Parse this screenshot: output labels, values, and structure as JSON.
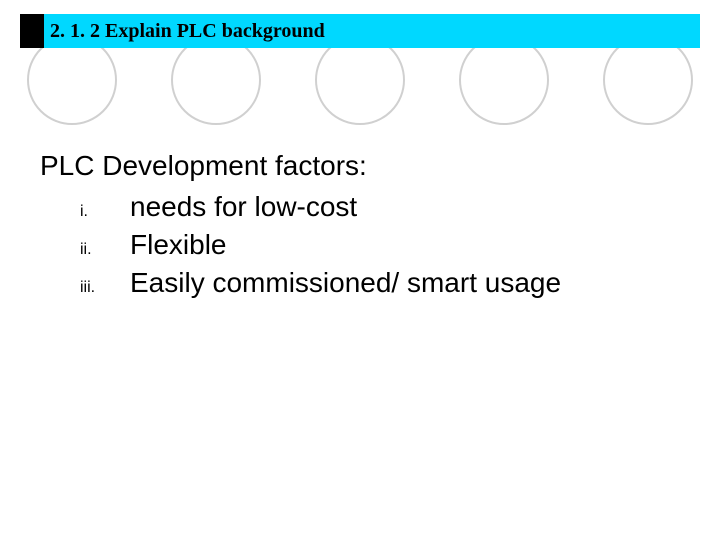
{
  "title": "2. 1. 2   Explain PLC background",
  "heading": "PLC Development factors:",
  "items": [
    {
      "marker": "i.",
      "text": "needs for low-cost"
    },
    {
      "marker": "ii.",
      "text": "Flexible"
    },
    {
      "marker": "iii.",
      "text": "Easily commissioned/ smart usage"
    }
  ],
  "colors": {
    "title_bg": "#00d8ff",
    "title_accent": "#000000",
    "circle_border": "#d0d0d0",
    "text": "#000000",
    "background": "#ffffff"
  }
}
